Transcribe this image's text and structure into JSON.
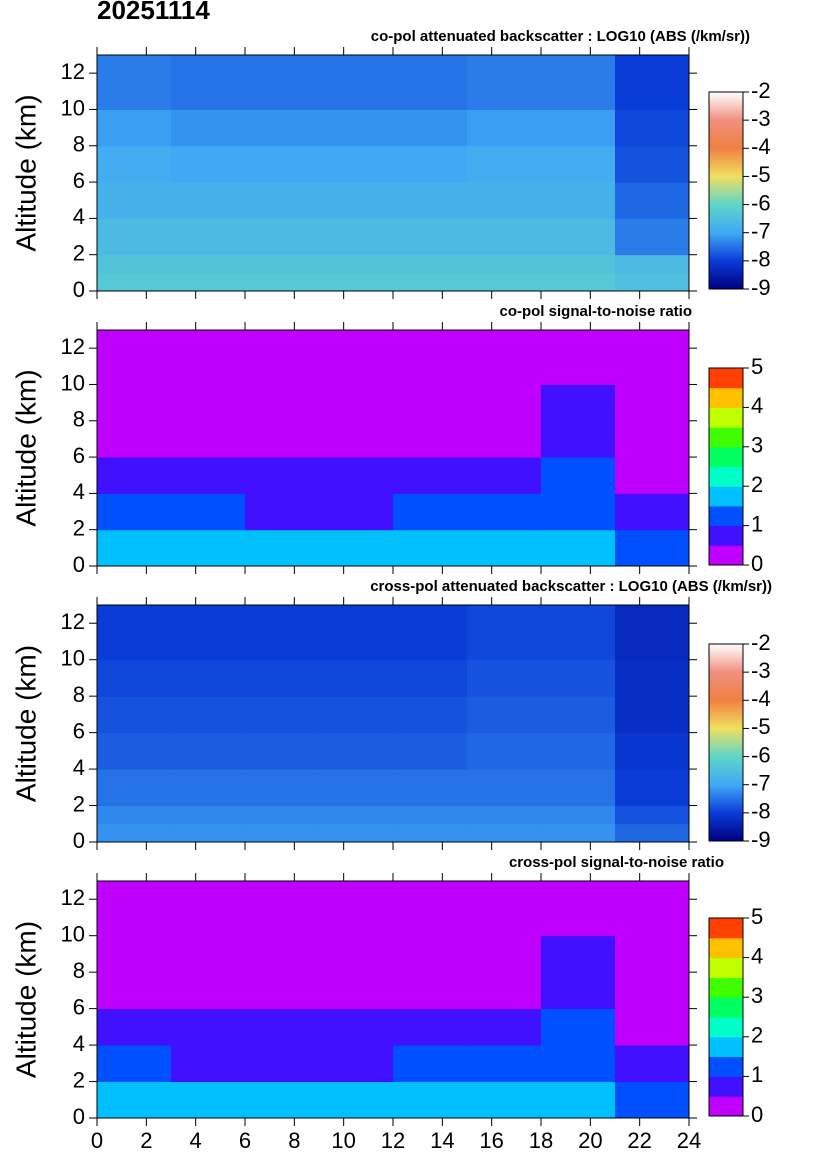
{
  "title": "20251114",
  "chart_data": [
    {
      "type": "heatmap",
      "title": "co-pol attenuated backscatter : LOG10 (ABS (/km/sr))",
      "y_label": "Altitude (km)",
      "xlim": [
        0,
        24
      ],
      "xticks": [
        0,
        2,
        4,
        6,
        8,
        10,
        12,
        14,
        16,
        18,
        20,
        22,
        24
      ],
      "xtick_labels": false,
      "ylim": [
        0,
        13
      ],
      "yticks": [
        0,
        2,
        4,
        6,
        8,
        10,
        12
      ],
      "xbins": [
        0,
        3,
        6,
        9,
        12,
        15,
        18,
        21,
        24
      ],
      "ybins": [
        0,
        1,
        2,
        4,
        6,
        8,
        10,
        13
      ],
      "z": [
        [
          -6.3,
          -6.3,
          -6.3,
          -6.3,
          -6.3,
          -6.3,
          -6.3,
          -6.5
        ],
        [
          -6.4,
          -6.4,
          -6.4,
          -6.4,
          -6.4,
          -6.4,
          -6.4,
          -6.6
        ],
        [
          -6.6,
          -6.6,
          -6.6,
          -6.6,
          -6.6,
          -6.6,
          -6.6,
          -7.4
        ],
        [
          -6.8,
          -6.8,
          -6.8,
          -6.8,
          -6.8,
          -6.8,
          -6.8,
          -7.6
        ],
        [
          -6.9,
          -7.0,
          -7.0,
          -7.0,
          -7.0,
          -6.9,
          -6.9,
          -7.8
        ],
        [
          -7.1,
          -7.2,
          -7.2,
          -7.2,
          -7.2,
          -7.1,
          -7.1,
          -7.9
        ],
        [
          -7.4,
          -7.5,
          -7.5,
          -7.5,
          -7.5,
          -7.4,
          -7.4,
          -8.0
        ]
      ],
      "colorbar": {
        "lim": [
          -9,
          -2
        ],
        "ticks": [
          -9,
          -8,
          -7,
          -6,
          -5,
          -4,
          -3,
          -2
        ],
        "discrete": false,
        "colors": [
          "#000080",
          "#0a3cd8",
          "#3fa9f5",
          "#5fd6c8",
          "#f0e060",
          "#f08040",
          "#f09080",
          "#ffffff"
        ]
      }
    },
    {
      "type": "heatmap",
      "title": "co-pol signal-to-noise ratio",
      "y_label": "Altitude (km)",
      "xlim": [
        0,
        24
      ],
      "xticks": [
        0,
        2,
        4,
        6,
        8,
        10,
        12,
        14,
        16,
        18,
        20,
        22,
        24
      ],
      "xtick_labels": false,
      "ylim": [
        0,
        13
      ],
      "yticks": [
        0,
        2,
        4,
        6,
        8,
        10,
        12
      ],
      "xbins": [
        0,
        3,
        6,
        9,
        12,
        15,
        18,
        21,
        24
      ],
      "ybins": [
        0,
        1,
        2,
        4,
        6,
        8,
        10,
        13
      ],
      "z": [
        [
          1.7,
          1.7,
          1.7,
          1.7,
          1.7,
          1.7,
          1.7,
          1.2
        ],
        [
          1.6,
          1.5,
          1.5,
          1.5,
          1.6,
          1.6,
          1.6,
          1.0
        ],
        [
          1.1,
          1.0,
          0.9,
          0.9,
          1.0,
          1.1,
          1.3,
          0.7
        ],
        [
          0.9,
          0.7,
          0.6,
          0.6,
          0.7,
          0.8,
          1.2,
          0.4
        ],
        [
          0.4,
          0.3,
          0.3,
          0.3,
          0.3,
          0.4,
          0.9,
          0.3
        ],
        [
          0.3,
          0.2,
          0.2,
          0.2,
          0.2,
          0.3,
          0.6,
          0.2
        ],
        [
          0.2,
          0.1,
          0.1,
          0.1,
          0.1,
          0.2,
          0.3,
          0.1
        ]
      ],
      "colorbar": {
        "lim": [
          0,
          5
        ],
        "ticks": [
          0,
          1,
          2,
          3,
          4,
          5
        ],
        "discrete": true,
        "colors": [
          "#c000ff",
          "#4010ff",
          "#0050ff",
          "#00c0ff",
          "#00ffc8",
          "#00ff60",
          "#40ff00",
          "#c0ff00",
          "#ffc000",
          "#ff4000"
        ]
      }
    },
    {
      "type": "heatmap",
      "title": "cross-pol attenuated backscatter : LOG10 (ABS (/km/sr))",
      "y_label": "Altitude (km)",
      "xlim": [
        0,
        24
      ],
      "xticks": [
        0,
        2,
        4,
        6,
        8,
        10,
        12,
        14,
        16,
        18,
        20,
        22,
        24
      ],
      "xtick_labels": false,
      "ylim": [
        0,
        13
      ],
      "yticks": [
        0,
        2,
        4,
        6,
        8,
        10,
        12
      ],
      "xbins": [
        0,
        3,
        6,
        9,
        12,
        15,
        18,
        21,
        24
      ],
      "ybins": [
        0,
        1,
        2,
        4,
        6,
        8,
        10,
        13
      ],
      "z": [
        [
          -7.2,
          -7.2,
          -7.2,
          -7.2,
          -7.2,
          -7.2,
          -7.2,
          -7.6
        ],
        [
          -7.3,
          -7.3,
          -7.3,
          -7.3,
          -7.3,
          -7.3,
          -7.3,
          -7.8
        ],
        [
          -7.5,
          -7.5,
          -7.5,
          -7.5,
          -7.5,
          -7.5,
          -7.5,
          -8.0
        ],
        [
          -7.7,
          -7.7,
          -7.7,
          -7.7,
          -7.7,
          -7.6,
          -7.6,
          -8.1
        ],
        [
          -7.8,
          -7.8,
          -7.8,
          -7.8,
          -7.8,
          -7.7,
          -7.7,
          -8.2
        ],
        [
          -7.9,
          -7.9,
          -7.9,
          -7.9,
          -7.9,
          -7.8,
          -7.8,
          -8.2
        ],
        [
          -8.0,
          -8.0,
          -8.0,
          -8.0,
          -8.0,
          -7.9,
          -7.9,
          -8.3
        ]
      ],
      "colorbar": {
        "lim": [
          -9,
          -2
        ],
        "ticks": [
          -9,
          -8,
          -7,
          -6,
          -5,
          -4,
          -3,
          -2
        ],
        "discrete": false,
        "colors": [
          "#000080",
          "#0a3cd8",
          "#3fa9f5",
          "#5fd6c8",
          "#f0e060",
          "#f08040",
          "#f09080",
          "#ffffff"
        ]
      }
    },
    {
      "type": "heatmap",
      "title": "cross-pol signal-to-noise ratio",
      "y_label": "Altitude (km)",
      "xlim": [
        0,
        24
      ],
      "xticks": [
        0,
        2,
        4,
        6,
        8,
        10,
        12,
        14,
        16,
        18,
        20,
        22,
        24
      ],
      "xtick_labels": true,
      "ylim": [
        0,
        13
      ],
      "yticks": [
        0,
        2,
        4,
        6,
        8,
        10,
        12
      ],
      "xbins": [
        0,
        3,
        6,
        9,
        12,
        15,
        18,
        21,
        24
      ],
      "ybins": [
        0,
        1,
        2,
        4,
        6,
        8,
        10,
        13
      ],
      "z": [
        [
          1.7,
          1.7,
          1.7,
          1.7,
          1.7,
          1.7,
          1.7,
          1.2
        ],
        [
          1.6,
          1.5,
          1.5,
          1.5,
          1.6,
          1.6,
          1.6,
          1.0
        ],
        [
          1.1,
          0.9,
          0.9,
          0.9,
          1.0,
          1.1,
          1.3,
          0.7
        ],
        [
          0.8,
          0.7,
          0.6,
          0.6,
          0.7,
          0.8,
          1.2,
          0.4
        ],
        [
          0.4,
          0.3,
          0.3,
          0.3,
          0.3,
          0.4,
          0.9,
          0.3
        ],
        [
          0.3,
          0.2,
          0.2,
          0.2,
          0.2,
          0.3,
          0.5,
          0.2
        ],
        [
          0.2,
          0.1,
          0.1,
          0.1,
          0.1,
          0.2,
          0.3,
          0.1
        ]
      ],
      "colorbar": {
        "lim": [
          0,
          5
        ],
        "ticks": [
          0,
          1,
          2,
          3,
          4,
          5
        ],
        "discrete": true,
        "colors": [
          "#c000ff",
          "#4010ff",
          "#0050ff",
          "#00c0ff",
          "#00ffc8",
          "#00ff60",
          "#40ff00",
          "#c0ff00",
          "#ffc000",
          "#ff4000"
        ]
      }
    }
  ]
}
